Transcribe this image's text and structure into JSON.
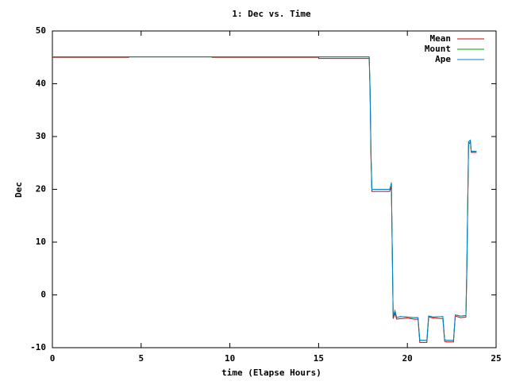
{
  "chart_data": {
    "type": "line",
    "title": "1: Dec vs. Time",
    "x_label": "time (Elapse Hours)",
    "y_label": "Dec",
    "x": [
      0,
      4.3,
      4.3,
      9,
      9,
      15,
      15,
      17.85,
      17.9,
      17.95,
      18,
      19,
      19.05,
      19.1,
      19.15,
      19.2,
      19.3,
      19.4,
      19.6,
      20,
      20.4,
      20.6,
      20.7,
      21.1,
      21.2,
      21.5,
      22,
      22.1,
      22.2,
      22.6,
      22.7,
      23,
      23.3,
      23.35,
      23.45,
      23.55,
      23.6,
      23.7,
      23.9
    ],
    "series": [
      {
        "name": "Mean",
        "color": "#d00000",
        "values": [
          45,
          45,
          45.1,
          45.1,
          45,
          45,
          44.8,
          44.8,
          38,
          26,
          19.6,
          19.6,
          20,
          20.5,
          8,
          -4.5,
          -3.5,
          -4.6,
          -4.5,
          -4.4,
          -4.6,
          -4.6,
          -9,
          -9,
          -4.2,
          -4.4,
          -4.5,
          -8.8,
          -8.9,
          -8.9,
          -4,
          -4.3,
          -4.2,
          4,
          28.5,
          29,
          27,
          27,
          27
        ]
      },
      {
        "name": "Mount",
        "color": "#00a000",
        "values": [
          45.1,
          45.1,
          45.1,
          45.1,
          45.1,
          45.1,
          45.1,
          45.1,
          39,
          27,
          20,
          20,
          20.5,
          21,
          8.5,
          -4.2,
          -3,
          -4.3,
          -4.1,
          -4.2,
          -4.3,
          -4.3,
          -8.6,
          -8.6,
          -4,
          -4.2,
          -4.1,
          -8.5,
          -8.6,
          -8.6,
          -3.8,
          -4,
          -3.9,
          5,
          29,
          29.3,
          27.2,
          27.2,
          27.2
        ]
      },
      {
        "name": "Ape",
        "color": "#0080d0",
        "values": [
          45.1,
          45.1,
          45.1,
          45.1,
          45.1,
          45.1,
          45.1,
          45.1,
          39,
          27,
          20,
          20,
          20.5,
          21.3,
          8.5,
          -4.2,
          -3,
          -4.3,
          -4.1,
          -4.2,
          -4.3,
          -4.3,
          -8.6,
          -8.6,
          -4,
          -4.2,
          -4.1,
          -8.5,
          -8.6,
          -8.6,
          -3.8,
          -4,
          -3.9,
          5,
          29,
          29.3,
          27.2,
          27.2,
          27.2
        ]
      }
    ],
    "xlim": [
      0,
      25
    ],
    "xticks": [
      0,
      5,
      10,
      15,
      20,
      25
    ],
    "ylim": [
      -10,
      50
    ],
    "yticks": [
      -10,
      0,
      10,
      20,
      30,
      40,
      50
    ],
    "legend": "upper-right"
  }
}
